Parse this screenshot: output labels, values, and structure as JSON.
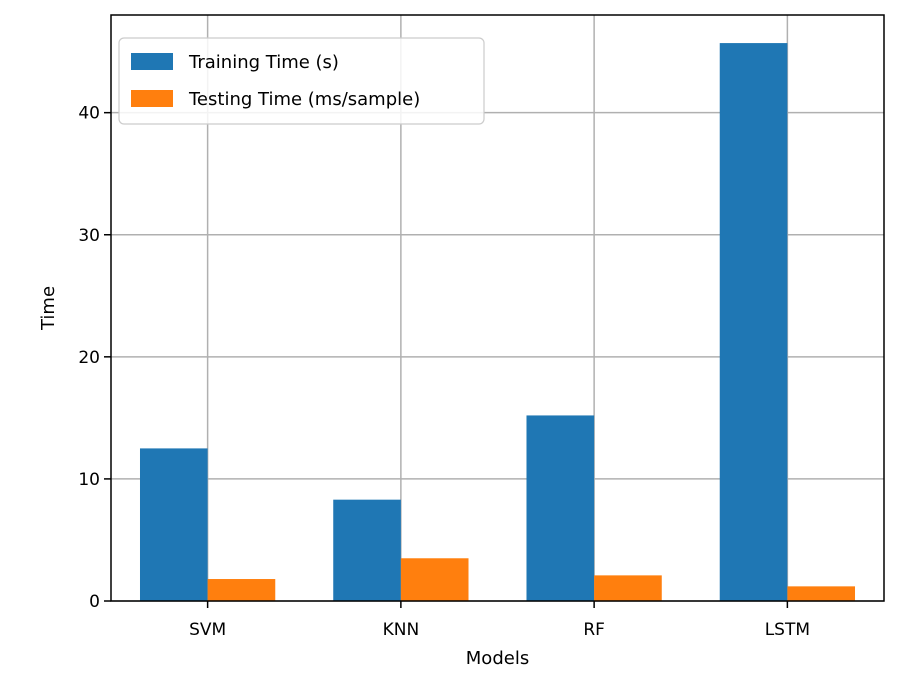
{
  "chart_data": {
    "type": "bar",
    "title": "",
    "xlabel": "Models",
    "ylabel": "Time",
    "categories": [
      "SVM",
      "KNN",
      "RF",
      "LSTM"
    ],
    "series": [
      {
        "name": "Training Time (s)",
        "values": [
          12.5,
          8.3,
          15.2,
          45.7
        ],
        "color": "#1f77b4"
      },
      {
        "name": "Testing Time (ms/sample)",
        "values": [
          1.8,
          3.5,
          2.1,
          1.2
        ],
        "color": "#ff7f0e"
      }
    ],
    "yticks": [
      0,
      10,
      20,
      30,
      40
    ],
    "ylim": [
      0,
      48
    ],
    "grid": true,
    "legend_position": "top-left"
  }
}
